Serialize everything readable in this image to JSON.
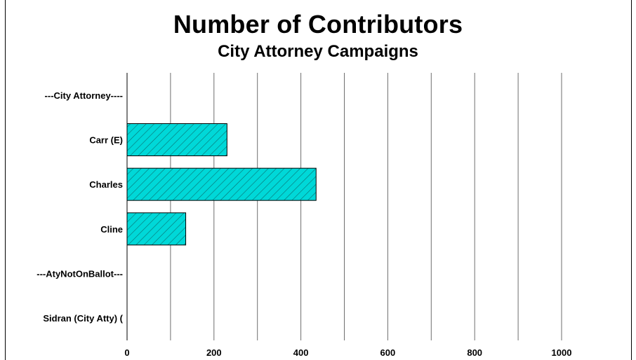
{
  "chart_data": {
    "type": "bar",
    "orientation": "horizontal",
    "title": "Number of Contributors",
    "subtitle": "City Attorney Campaigns",
    "categories": [
      "---City Attorney----",
      "Carr (E)",
      "Charles",
      "Cline",
      "---AtyNotOnBallot---",
      "Sidran (City Atty) ("
    ],
    "values": [
      0,
      230,
      435,
      135,
      0,
      0
    ],
    "xlim": [
      0,
      1000
    ],
    "xticks": [
      "0",
      "200",
      "400",
      "600",
      "800",
      "1000"
    ],
    "xtick_values": [
      0,
      200,
      400,
      600,
      800,
      1000
    ],
    "gridline_step": 100,
    "grid": true,
    "bar_color": "#00d8d8",
    "hatch_color": "#000000"
  }
}
